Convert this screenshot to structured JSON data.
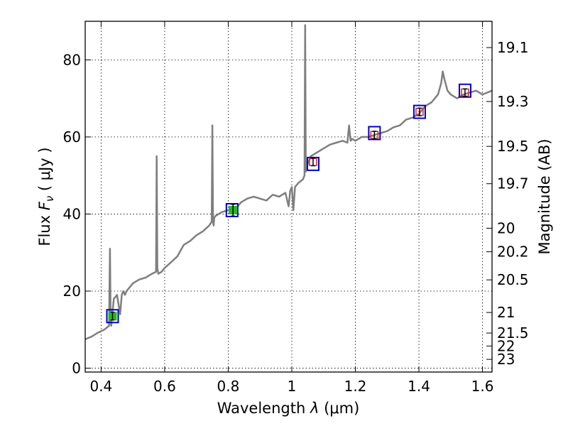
{
  "chart_data": {
    "type": "line",
    "xlabel_prefix": "Wavelength  ",
    "xlabel_symbol": "λ",
    "xlabel_unit": " (μm)",
    "ylabel_prefix": "Flux  ",
    "ylabel_symbol": "F",
    "ylabel_sub": "ν",
    "ylabel_unit": "  ( μJy )",
    "y2label": "Magnitude (AB)",
    "xlim": [
      0.35,
      1.63
    ],
    "ylim": [
      -1,
      90
    ],
    "grid": true,
    "x_ticks": [
      0.4,
      0.6,
      0.8,
      1.0,
      1.2,
      1.4,
      1.6
    ],
    "x_tick_labels": [
      "0.4",
      "0.6",
      "0.8",
      "1",
      "1.2",
      "1.4",
      "1.6"
    ],
    "y_ticks": [
      0,
      20,
      40,
      60,
      80
    ],
    "y_tick_labels": [
      "0",
      "20",
      "40",
      "60",
      "80"
    ],
    "magnitude_ticks": [
      19.1,
      19.3,
      19.5,
      19.7,
      20,
      20.2,
      20.5,
      21,
      21.5,
      22,
      23
    ],
    "magnitude_tick_labels": [
      "19.1",
      "19.3",
      "19.5",
      "19.7",
      "20",
      "20.2",
      "20.5",
      "21",
      "21.5",
      "22",
      "23"
    ],
    "colors": {
      "spectrum": "#7f7f7f",
      "model_box": "#0000cc",
      "observed_green": "#22bb22",
      "observed_red": "#dd2222"
    },
    "series": [
      {
        "role": "spectrum",
        "x": [
          0.35,
          0.37,
          0.39,
          0.41,
          0.425,
          0.428,
          0.43,
          0.432,
          0.435,
          0.44,
          0.45,
          0.46,
          0.465,
          0.47,
          0.475,
          0.48,
          0.49,
          0.5,
          0.52,
          0.54,
          0.56,
          0.573,
          0.575,
          0.577,
          0.579,
          0.58,
          0.59,
          0.6,
          0.62,
          0.64,
          0.66,
          0.68,
          0.7,
          0.72,
          0.74,
          0.748,
          0.75,
          0.752,
          0.754,
          0.756,
          0.76,
          0.78,
          0.8,
          0.82,
          0.83,
          0.84,
          0.86,
          0.88,
          0.9,
          0.92,
          0.94,
          0.96,
          0.98,
          0.99,
          0.995,
          1.0,
          1.005,
          1.01,
          1.02,
          1.035,
          1.04,
          1.042,
          1.044,
          1.046,
          1.05,
          1.06,
          1.08,
          1.1,
          1.12,
          1.14,
          1.16,
          1.175,
          1.18,
          1.185,
          1.19,
          1.2,
          1.22,
          1.24,
          1.26,
          1.28,
          1.3,
          1.32,
          1.34,
          1.36,
          1.38,
          1.4,
          1.42,
          1.44,
          1.46,
          1.47,
          1.475,
          1.48,
          1.49,
          1.5,
          1.52,
          1.54,
          1.56,
          1.58,
          1.6,
          1.63
        ],
        "y": [
          7.5,
          8.2,
          9.2,
          10,
          11,
          31,
          13,
          11,
          14,
          18,
          19,
          14,
          19,
          20,
          19,
          20,
          21,
          22,
          23,
          23.5,
          24.5,
          25,
          55,
          26,
          25,
          24.5,
          25,
          26,
          27.5,
          29,
          32,
          33,
          34.5,
          35.5,
          37,
          38,
          63,
          38,
          37,
          39,
          39.5,
          40.5,
          41,
          41.5,
          42,
          43,
          44,
          44.5,
          44,
          43.5,
          45,
          44.5,
          45.5,
          42,
          46,
          47,
          41,
          47,
          48,
          49,
          50,
          89,
          51,
          52,
          53,
          55,
          56,
          57,
          58,
          58.5,
          59,
          58.5,
          63,
          59,
          59.5,
          59,
          60,
          60,
          60.5,
          61,
          61.5,
          62.5,
          63,
          64.5,
          65,
          66,
          68,
          69,
          71,
          74,
          77,
          75,
          72,
          71,
          70,
          71,
          71.5,
          72,
          71,
          72
        ]
      },
      {
        "role": "model",
        "x": [
          0.436,
          0.812,
          1.067,
          1.26,
          1.402,
          1.545
        ],
        "y": [
          13.5,
          41,
          53,
          61,
          66.5,
          72
        ]
      },
      {
        "role": "observed",
        "x": [
          0.436,
          0.815,
          1.067,
          1.26,
          1.402,
          1.545
        ],
        "y": [
          13.5,
          41,
          53.5,
          60.5,
          66.5,
          71.5
        ],
        "y_err": [
          1,
          1.5,
          1,
          1,
          1,
          1
        ],
        "color_keys": [
          "observed_green",
          "observed_green",
          "observed_red",
          "observed_red",
          "observed_red",
          "observed_red"
        ]
      }
    ]
  }
}
